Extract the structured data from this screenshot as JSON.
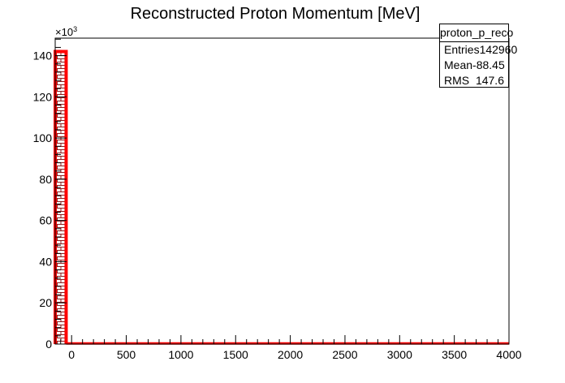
{
  "chart_data": {
    "type": "bar",
    "title": "Reconstructed Proton Momentum [MeV]",
    "xlabel": "",
    "ylabel": "",
    "xlim": [
      -150,
      4000
    ],
    "ylim": [
      0,
      148.5
    ],
    "y_multiplier_label": "×10",
    "y_multiplier_exp": "3",
    "x_ticks": [
      0,
      500,
      1000,
      1500,
      2000,
      2500,
      3000,
      3500,
      4000
    ],
    "y_ticks": [
      0,
      20,
      40,
      60,
      80,
      100,
      120,
      140
    ],
    "bins": [
      {
        "x0": -150,
        "x1": -50,
        "value": 142
      },
      {
        "x0": -50,
        "x1": 4000,
        "value": 0.3
      }
    ],
    "fill_pattern": "brick",
    "line_color": "#ff0000",
    "grid": false,
    "legend": "none",
    "stats": {
      "name": "proton_p_reco",
      "rows": [
        {
          "label": "Entries",
          "value": "142960"
        },
        {
          "label": "Mean",
          "value": "-88.45"
        },
        {
          "label": "RMS",
          "value": "147.6"
        }
      ]
    }
  }
}
